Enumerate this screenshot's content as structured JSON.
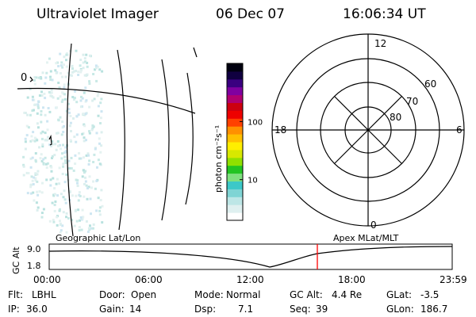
{
  "header": {
    "instrument": "Ultraviolet Imager",
    "date": "06 Dec 07",
    "time": "16:06:34 UT"
  },
  "geo_panel": {
    "lon_label": "0",
    "lat_mark": "f"
  },
  "colorbar": {
    "unit_label": "photon cm⁻²s⁻¹",
    "ticks": [
      {
        "label": "100",
        "value": 100
      },
      {
        "label": "10",
        "value": 10
      }
    ],
    "range": [
      2,
      1000
    ],
    "colors": [
      "#ffffff",
      "#dff0f0",
      "#bde6e6",
      "#7fd4d4",
      "#3cc8c8",
      "#7fe07f",
      "#22c422",
      "#90e000",
      "#d8e800",
      "#ffee00",
      "#ffc000",
      "#ff9000",
      "#ff4000",
      "#ee0000",
      "#cc0010",
      "#b00070",
      "#8000a0",
      "#3a0080",
      "#100040",
      "#000010"
    ]
  },
  "polar": {
    "mlt_labels": {
      "top": "12",
      "left": "18",
      "right": "6",
      "bottom": "0"
    },
    "lat_labels": [
      "60",
      "70",
      "80"
    ]
  },
  "alt_plot": {
    "left_title": "Geographic Lat/Lon",
    "right_title": "Apex MLat/MLT",
    "y_label": "GC Alt",
    "y_ticks": [
      "9.0",
      "1.8"
    ],
    "x_ticks": [
      "00:00",
      "06:00",
      "12:00",
      "18:00",
      "23:59"
    ],
    "marker_color": "#ff0000"
  },
  "status": {
    "row1": [
      {
        "key": "Flt:",
        "value": "LBHL"
      },
      {
        "key": "Door:",
        "value": "Open"
      },
      {
        "key": "Mode:",
        "value": "Normal"
      },
      {
        "key": "GC Alt:",
        "value": "4.4 Re"
      },
      {
        "key": "GLat:",
        "value": "-3.5"
      }
    ],
    "row2": [
      {
        "key": "IP:",
        "value": "36.0"
      },
      {
        "key": "Gain:",
        "value": "14"
      },
      {
        "key": "Dsp:",
        "value": "7.1"
      },
      {
        "key": "Seq:",
        "value": "39"
      },
      {
        "key": "GLon:",
        "value": "186.7"
      }
    ]
  }
}
